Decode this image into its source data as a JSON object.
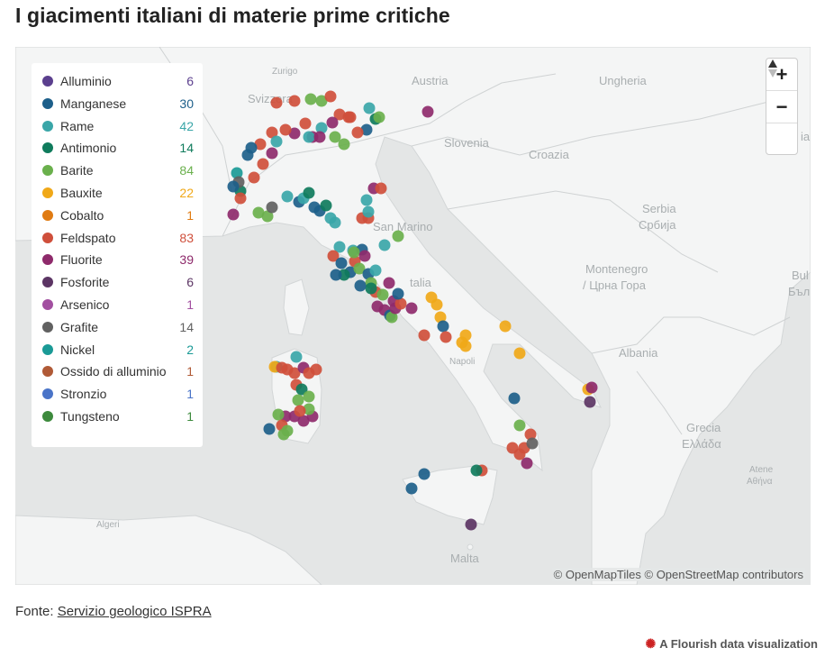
{
  "title": "I giacimenti italiani di materie prime critiche",
  "legend": [
    {
      "label": "Alluminio",
      "count": "6",
      "color": "#5b3f8e"
    },
    {
      "label": "Manganese",
      "count": "30",
      "color": "#1d5f8a"
    },
    {
      "label": "Rame",
      "count": "42",
      "color": "#3aa6a8"
    },
    {
      "label": "Antimonio",
      "count": "14",
      "color": "#0f7b5c"
    },
    {
      "label": "Barite",
      "count": "84",
      "color": "#6ab04c"
    },
    {
      "label": "Bauxite",
      "count": "22",
      "color": "#f0a818"
    },
    {
      "label": "Cobalto",
      "count": "1",
      "color": "#e07b12"
    },
    {
      "label": "Feldspato",
      "count": "83",
      "color": "#cf4f3b"
    },
    {
      "label": "Fluorite",
      "count": "39",
      "color": "#8e2a6b"
    },
    {
      "label": "Fosforite",
      "count": "6",
      "color": "#5c3564"
    },
    {
      "label": "Arsenico",
      "count": "1",
      "color": "#a24fa0"
    },
    {
      "label": "Grafite",
      "count": "14",
      "color": "#616161"
    },
    {
      "label": "Nickel",
      "count": "2",
      "color": "#1a9a96"
    },
    {
      "label": "Ossido di alluminio",
      "count": "1",
      "color": "#b05a36"
    },
    {
      "label": "Stronzio",
      "count": "1",
      "color": "#4a74c8"
    },
    {
      "label": "Tungsteno",
      "count": "1",
      "color": "#3d8a3d"
    }
  ],
  "map_labels": {
    "austria": "Austria",
    "ungheria": "Ungheria",
    "svizzera": "Svizzera",
    "slovenia": "Slovenia",
    "croazia": "Croazia",
    "san_marino": "San Marino",
    "serbia": "Serbia",
    "serbia_cyr": "Србија",
    "montenegro": "Montenegro",
    "montenegro_cyr": "/ Црна Гора",
    "albania": "Albania",
    "grecia": "Grecia",
    "grecia_gr": "Ελλάδα",
    "malta": "Malta",
    "bul": "Bul",
    "bulg_cyr": "Бълг",
    "italia": "talia",
    "napoli": "Napoli",
    "atene": "Atene",
    "atene_gr": "Αθήνα",
    "algeri": "Algeri",
    "zurigo": "Zurigo",
    "in_edge": "ia"
  },
  "attribution": "© OpenMapTiles © OpenStreetMap contributors",
  "source_prefix": "Fonte: ",
  "source_link": "Servizio geologico ISPRA",
  "credit": "A Flourish data visualization",
  "zoom": {
    "in": "+",
    "out": "−"
  }
}
